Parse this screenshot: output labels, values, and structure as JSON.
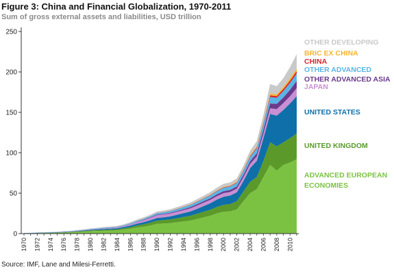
{
  "title": "Figure 3: China and Financial Globalization, 1970-2011",
  "subtitle": "Sum of gross external assets and liabilities, USD trillion",
  "source": "Source: IMF, Lane and Milesi-Ferretti.",
  "chart_data": {
    "type": "area",
    "stacked": true,
    "title": "Figure 3: China and Financial Globalization, 1970-2011",
    "subtitle": "Sum of gross external assets and liabilities, USD trillion",
    "xlabel": "",
    "ylabel": "",
    "ylim": [
      0,
      250
    ],
    "yticks": [
      0,
      50,
      100,
      150,
      200,
      250
    ],
    "xtick_labels": [
      "1970",
      "1972",
      "1974",
      "1976",
      "1978",
      "1980",
      "1982",
      "1984",
      "1986",
      "1988",
      "1990",
      "1992",
      "1994",
      "1996",
      "1998",
      "2000",
      "2002",
      "2004",
      "2006",
      "2008",
      "2010"
    ],
    "x": [
      1970,
      1971,
      1972,
      1973,
      1974,
      1975,
      1976,
      1977,
      1978,
      1979,
      1980,
      1981,
      1982,
      1983,
      1984,
      1985,
      1986,
      1987,
      1988,
      1989,
      1990,
      1991,
      1992,
      1993,
      1994,
      1995,
      1996,
      1997,
      1998,
      1999,
      2000,
      2001,
      2002,
      2003,
      2004,
      2005,
      2006,
      2007,
      2008,
      2009,
      2010,
      2011
    ],
    "grid": false,
    "legend": "right, labels placed beside the final values",
    "series": [
      {
        "name": "ADVANCED EUROPEAN ECONOMIES",
        "color": "#7cc242",
        "values": [
          0.3,
          0.4,
          0.5,
          0.7,
          0.8,
          1.0,
          1.2,
          1.5,
          2.0,
          2.5,
          3.0,
          3.3,
          3.5,
          3.7,
          4.0,
          5.0,
          6.0,
          7.5,
          8.5,
          10.0,
          12.0,
          12.5,
          13.0,
          14.0,
          15.0,
          16.0,
          18.0,
          20.0,
          22.0,
          25.0,
          27.0,
          27.5,
          30.0,
          40.0,
          50.0,
          55.0,
          70.0,
          85.0,
          78.0,
          85.0,
          88.0,
          92.0
        ]
      },
      {
        "name": "UNITED KINGDOM",
        "color": "#5b9a2a",
        "values": [
          0.1,
          0.1,
          0.2,
          0.2,
          0.3,
          0.3,
          0.4,
          0.5,
          0.6,
          0.7,
          0.8,
          0.9,
          1.0,
          1.1,
          1.2,
          1.5,
          2.0,
          2.5,
          3.0,
          3.5,
          4.0,
          4.2,
          4.5,
          5.0,
          5.5,
          6.0,
          6.5,
          7.0,
          7.5,
          8.0,
          8.5,
          9.0,
          10.0,
          12.0,
          14.0,
          15.0,
          20.0,
          28.0,
          30.0,
          28.0,
          30.0,
          32.0
        ]
      },
      {
        "name": "UNITED STATES",
        "color": "#0f6fa8",
        "values": [
          0.2,
          0.2,
          0.3,
          0.3,
          0.4,
          0.4,
          0.5,
          0.5,
          0.6,
          0.7,
          0.9,
          1.0,
          1.2,
          1.3,
          1.4,
          1.6,
          2.0,
          2.3,
          2.6,
          3.0,
          3.3,
          3.5,
          3.8,
          4.3,
          4.8,
          5.3,
          6.0,
          7.0,
          8.0,
          9.0,
          10.0,
          10.5,
          11.0,
          13.0,
          17.0,
          20.0,
          28.0,
          35.0,
          38.0,
          40.0,
          43.0,
          46.0
        ]
      },
      {
        "name": "JAPAN",
        "color": "#c88fd2",
        "values": [
          0.05,
          0.05,
          0.1,
          0.1,
          0.1,
          0.1,
          0.15,
          0.2,
          0.25,
          0.3,
          0.4,
          0.5,
          0.6,
          0.7,
          0.8,
          1.0,
          1.4,
          2.0,
          2.5,
          3.0,
          3.5,
          3.5,
          3.6,
          3.7,
          3.8,
          4.0,
          4.1,
          4.2,
          4.2,
          4.3,
          4.5,
          4.5,
          4.6,
          4.8,
          5.0,
          5.5,
          6.0,
          7.0,
          8.0,
          8.5,
          9.0,
          10.0
        ]
      },
      {
        "name": "OTHER ADVANCED ASIA",
        "color": "#6b3a8c",
        "values": [
          0.02,
          0.02,
          0.03,
          0.03,
          0.04,
          0.05,
          0.05,
          0.06,
          0.07,
          0.08,
          0.1,
          0.12,
          0.14,
          0.16,
          0.2,
          0.25,
          0.3,
          0.4,
          0.5,
          0.6,
          0.7,
          0.8,
          0.9,
          1.0,
          1.2,
          1.4,
          1.6,
          1.8,
          2.0,
          2.2,
          2.5,
          2.6,
          2.8,
          3.0,
          3.5,
          4.0,
          5.0,
          6.0,
          6.5,
          7.0,
          8.0,
          9.0
        ]
      },
      {
        "name": "OTHER ADVANCED",
        "color": "#5ab4e5",
        "values": [
          0.1,
          0.1,
          0.15,
          0.15,
          0.2,
          0.2,
          0.25,
          0.3,
          0.35,
          0.4,
          0.5,
          0.6,
          0.7,
          0.75,
          0.8,
          0.9,
          1.0,
          1.2,
          1.4,
          1.6,
          1.8,
          2.0,
          2.1,
          2.3,
          2.5,
          2.8,
          3.0,
          3.3,
          3.6,
          4.0,
          4.2,
          4.3,
          4.5,
          5.0,
          5.5,
          6.0,
          7.0,
          8.0,
          7.5,
          8.0,
          8.5,
          9.0
        ]
      },
      {
        "name": "CHINA",
        "color": "#d9262b",
        "values": [
          0.0,
          0.0,
          0.0,
          0.0,
          0.0,
          0.0,
          0.0,
          0.0,
          0.0,
          0.0,
          0.0,
          0.0,
          0.05,
          0.05,
          0.05,
          0.05,
          0.1,
          0.1,
          0.1,
          0.1,
          0.2,
          0.2,
          0.2,
          0.3,
          0.3,
          0.3,
          0.4,
          0.4,
          0.5,
          0.5,
          0.6,
          0.6,
          0.7,
          0.8,
          1.0,
          1.2,
          1.5,
          2.0,
          2.2,
          2.5,
          2.8,
          3.0
        ]
      },
      {
        "name": "BRIC EX CHINA",
        "color": "#f5b52e",
        "values": [
          0.0,
          0.0,
          0.0,
          0.0,
          0.0,
          0.0,
          0.0,
          0.0,
          0.0,
          0.0,
          0.0,
          0.0,
          0.05,
          0.05,
          0.05,
          0.05,
          0.1,
          0.1,
          0.1,
          0.1,
          0.2,
          0.2,
          0.2,
          0.3,
          0.3,
          0.3,
          0.4,
          0.4,
          0.5,
          0.5,
          0.6,
          0.6,
          0.7,
          0.8,
          1.0,
          1.2,
          1.5,
          2.0,
          2.2,
          2.4,
          2.7,
          3.0
        ]
      },
      {
        "name": "OTHER DEVELOPING",
        "color": "#c9c9c9",
        "values": [
          0.1,
          0.1,
          0.15,
          0.15,
          0.2,
          0.3,
          0.3,
          0.4,
          0.5,
          0.6,
          0.7,
          0.8,
          0.9,
          1.0,
          1.0,
          1.1,
          1.2,
          1.3,
          1.4,
          1.5,
          1.6,
          1.7,
          1.8,
          2.0,
          2.2,
          2.4,
          2.6,
          2.8,
          3.0,
          3.3,
          3.6,
          3.8,
          4.0,
          4.5,
          5.5,
          6.5,
          8.0,
          12.0,
          10.0,
          11.0,
          14.0,
          18.0
        ]
      }
    ]
  }
}
